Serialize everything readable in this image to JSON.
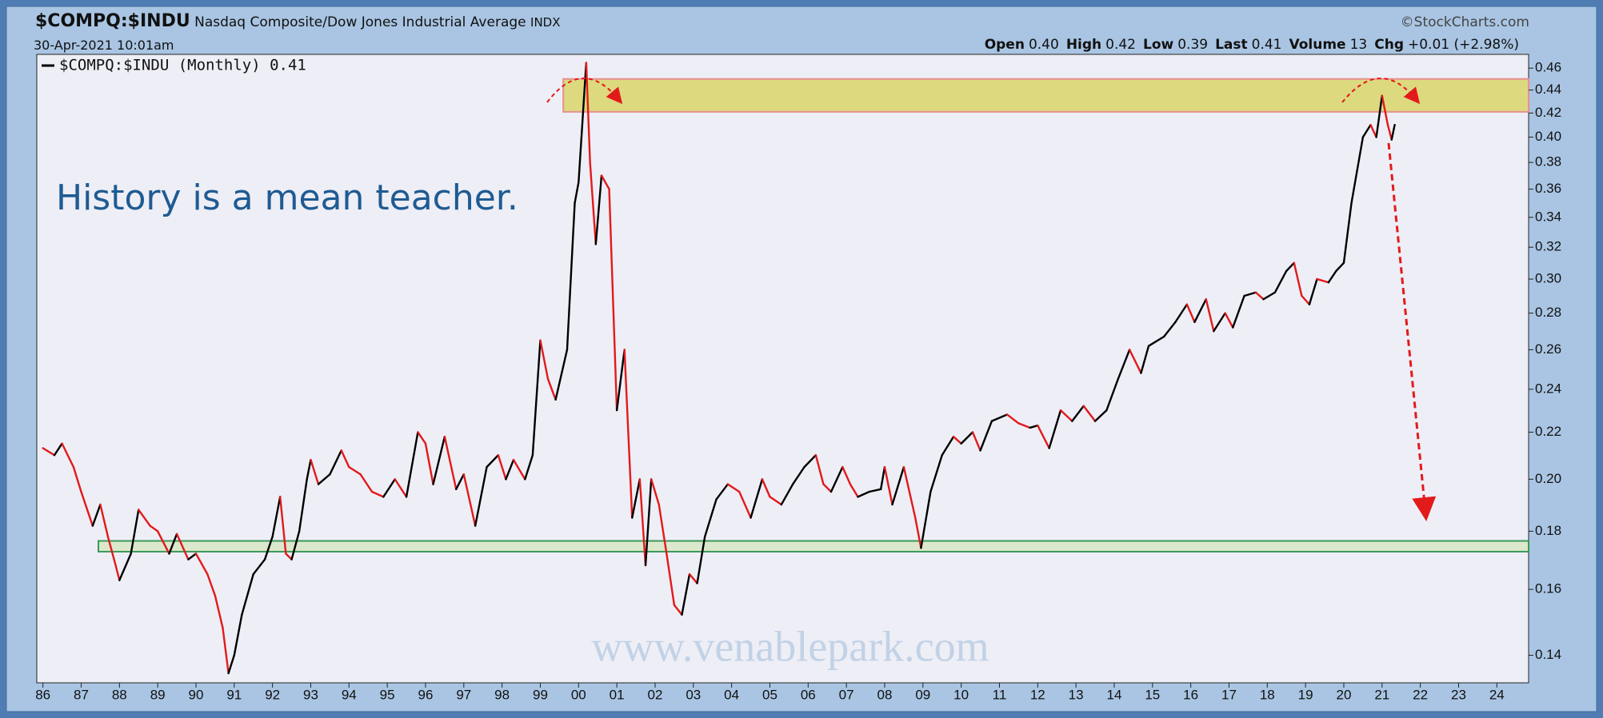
{
  "chart_data": {
    "type": "line",
    "symbol": "$COMPQ:$INDU",
    "title": "Nasdaq Composite/Dow Jones Industrial Average",
    "exchange": "INDX",
    "source": "©StockCharts.com",
    "date": "30-Apr-2021 10:01am",
    "stats": [
      {
        "label": "Open",
        "value": "0.40"
      },
      {
        "label": "High",
        "value": "0.42"
      },
      {
        "label": "Low",
        "value": "0.39"
      },
      {
        "label": "Last",
        "value": "0.41"
      },
      {
        "label": "Volume",
        "value": "13"
      },
      {
        "label": "Chg",
        "value": "+0.01 (+2.98%)"
      }
    ],
    "annotations": [
      "History is a mean teacher.",
      "www.venablepark.com"
    ],
    "log_scale": true,
    "up_color": "#000000",
    "down_color": "#e21a1a",
    "x": [
      1986.0,
      1986.3,
      1986.5,
      1986.8,
      1987.0,
      1987.3,
      1987.5,
      1987.7,
      1987.9,
      1988.0,
      1988.3,
      1988.5,
      1988.8,
      1989.0,
      1989.3,
      1989.5,
      1989.8,
      1990.0,
      1990.3,
      1990.5,
      1990.7,
      1990.85,
      1991.0,
      1991.2,
      1991.5,
      1991.8,
      1992.0,
      1992.2,
      1992.35,
      1992.5,
      1992.7,
      1992.9,
      1993.0,
      1993.2,
      1993.5,
      1993.8,
      1994.0,
      1994.3,
      1994.6,
      1994.9,
      1995.2,
      1995.5,
      1995.8,
      1996.0,
      1996.2,
      1996.5,
      1996.8,
      1997.0,
      1997.3,
      1997.6,
      1997.9,
      1998.1,
      1998.3,
      1998.6,
      1998.8,
      1999.0,
      1999.2,
      1999.4,
      1999.7,
      1999.9,
      2000.0,
      2000.2,
      2000.3,
      2000.45,
      2000.6,
      2000.8,
      2001.0,
      2001.2,
      2001.4,
      2001.6,
      2001.75,
      2001.9,
      2002.1,
      2002.3,
      2002.5,
      2002.7,
      2002.9,
      2003.1,
      2003.3,
      2003.6,
      2003.9,
      2004.2,
      2004.5,
      2004.8,
      2005.0,
      2005.3,
      2005.6,
      2005.9,
      2006.2,
      2006.4,
      2006.6,
      2006.9,
      2007.1,
      2007.3,
      2007.6,
      2007.9,
      2008.0,
      2008.2,
      2008.5,
      2008.8,
      2008.95,
      2009.2,
      2009.5,
      2009.8,
      2010.0,
      2010.3,
      2010.5,
      2010.8,
      2011.2,
      2011.5,
      2011.8,
      2012.0,
      2012.3,
      2012.6,
      2012.9,
      2013.2,
      2013.5,
      2013.8,
      2014.1,
      2014.4,
      2014.7,
      2014.9,
      2015.3,
      2015.6,
      2015.9,
      2016.1,
      2016.4,
      2016.6,
      2016.9,
      2017.1,
      2017.4,
      2017.7,
      2017.9,
      2018.2,
      2018.5,
      2018.7,
      2018.9,
      2019.1,
      2019.3,
      2019.6,
      2019.8,
      2020.0,
      2020.2,
      2020.5,
      2020.7,
      2020.85,
      2021.0,
      2021.15,
      2021.25,
      2021.33
    ],
    "series": [
      {
        "name": "$COMPQ:$INDU (Monthly) 0.41",
        "values": [
          0.213,
          0.21,
          0.215,
          0.205,
          0.195,
          0.182,
          0.19,
          0.178,
          0.168,
          0.163,
          0.172,
          0.188,
          0.182,
          0.18,
          0.172,
          0.179,
          0.17,
          0.172,
          0.165,
          0.158,
          0.148,
          0.135,
          0.14,
          0.152,
          0.165,
          0.17,
          0.178,
          0.193,
          0.172,
          0.17,
          0.18,
          0.2,
          0.208,
          0.198,
          0.202,
          0.212,
          0.205,
          0.202,
          0.195,
          0.193,
          0.2,
          0.193,
          0.22,
          0.215,
          0.198,
          0.218,
          0.196,
          0.202,
          0.182,
          0.205,
          0.21,
          0.2,
          0.208,
          0.2,
          0.21,
          0.265,
          0.245,
          0.235,
          0.26,
          0.35,
          0.365,
          0.465,
          0.38,
          0.322,
          0.37,
          0.36,
          0.23,
          0.26,
          0.185,
          0.2,
          0.168,
          0.2,
          0.19,
          0.172,
          0.155,
          0.152,
          0.165,
          0.162,
          0.178,
          0.192,
          0.198,
          0.195,
          0.185,
          0.2,
          0.193,
          0.19,
          0.198,
          0.205,
          0.21,
          0.198,
          0.195,
          0.205,
          0.198,
          0.193,
          0.195,
          0.196,
          0.205,
          0.19,
          0.205,
          0.185,
          0.174,
          0.195,
          0.21,
          0.218,
          0.215,
          0.22,
          0.212,
          0.225,
          0.228,
          0.224,
          0.222,
          0.223,
          0.213,
          0.23,
          0.225,
          0.232,
          0.225,
          0.23,
          0.245,
          0.26,
          0.248,
          0.262,
          0.267,
          0.275,
          0.285,
          0.275,
          0.288,
          0.27,
          0.28,
          0.272,
          0.29,
          0.292,
          0.288,
          0.292,
          0.305,
          0.31,
          0.29,
          0.285,
          0.3,
          0.298,
          0.305,
          0.31,
          0.35,
          0.4,
          0.41,
          0.4,
          0.435,
          0.41,
          0.398,
          0.41
        ]
      }
    ],
    "bands": [
      {
        "color": "#d8d56a",
        "edge": "#e89090",
        "xlim": [
          1999.6,
          2024.83
        ],
        "ylim": [
          0.421,
          0.45
        ]
      },
      {
        "color": "#d8e6c4",
        "edge": "#3a9a5a",
        "xlim": [
          1987.45,
          2024.83
        ],
        "ylim": [
          0.1727,
          0.1765
        ]
      }
    ],
    "xlim": [
      1985.84,
      2024.83
    ],
    "xticks": [
      {
        "value": 1986,
        "label": "86"
      },
      {
        "value": 1987,
        "label": "87"
      },
      {
        "value": 1988,
        "label": "88"
      },
      {
        "value": 1989,
        "label": "89"
      },
      {
        "value": 1990,
        "label": "90"
      },
      {
        "value": 1991,
        "label": "91"
      },
      {
        "value": 1992,
        "label": "92"
      },
      {
        "value": 1993,
        "label": "93"
      },
      {
        "value": 1994,
        "label": "94"
      },
      {
        "value": 1995,
        "label": "95"
      },
      {
        "value": 1996,
        "label": "96"
      },
      {
        "value": 1997,
        "label": "97"
      },
      {
        "value": 1998,
        "label": "98"
      },
      {
        "value": 1999,
        "label": "99"
      },
      {
        "value": 2000,
        "label": "00"
      },
      {
        "value": 2001,
        "label": "01"
      },
      {
        "value": 2002,
        "label": "02"
      },
      {
        "value": 2003,
        "label": "03"
      },
      {
        "value": 2004,
        "label": "04"
      },
      {
        "value": 2005,
        "label": "05"
      },
      {
        "value": 2006,
        "label": "06"
      },
      {
        "value": 2007,
        "label": "07"
      },
      {
        "value": 2008,
        "label": "08"
      },
      {
        "value": 2009,
        "label": "09"
      },
      {
        "value": 2010,
        "label": "10"
      },
      {
        "value": 2011,
        "label": "11"
      },
      {
        "value": 2012,
        "label": "12"
      },
      {
        "value": 2013,
        "label": "13"
      },
      {
        "value": 2014,
        "label": "14"
      },
      {
        "value": 2015,
        "label": "15"
      },
      {
        "value": 2016,
        "label": "16"
      },
      {
        "value": 2017,
        "label": "17"
      },
      {
        "value": 2018,
        "label": "18"
      },
      {
        "value": 2019,
        "label": "19"
      },
      {
        "value": 2020,
        "label": "20"
      },
      {
        "value": 2021,
        "label": "21"
      },
      {
        "value": 2022,
        "label": "22"
      },
      {
        "value": 2023,
        "label": "23"
      },
      {
        "value": 2024,
        "label": "24"
      }
    ],
    "ylim": [
      0.1324,
      0.473
    ],
    "yticks": [
      0.14,
      0.16,
      0.18,
      {
        "value": 0.2,
        "label": "0.20"
      },
      0.22,
      0.24,
      0.26,
      0.28,
      {
        "value": 0.3,
        "label": "0.30"
      },
      0.32,
      0.34,
      0.36,
      0.38,
      {
        "value": 0.4,
        "label": "0.40"
      },
      0.42,
      0.44,
      0.46
    ]
  }
}
